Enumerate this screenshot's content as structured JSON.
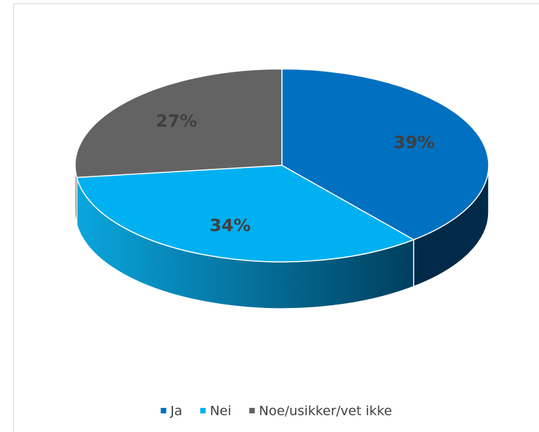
{
  "chart_data": {
    "type": "pie",
    "categories": [
      "Ja",
      "Nei",
      "Noe/usikker/vet ikke"
    ],
    "values": [
      39,
      34,
      27
    ],
    "value_labels": [
      "39%",
      "34%",
      "27%"
    ],
    "colors": [
      "#0070c0",
      "#00b0f0",
      "#636363"
    ],
    "legend": "bottom"
  }
}
